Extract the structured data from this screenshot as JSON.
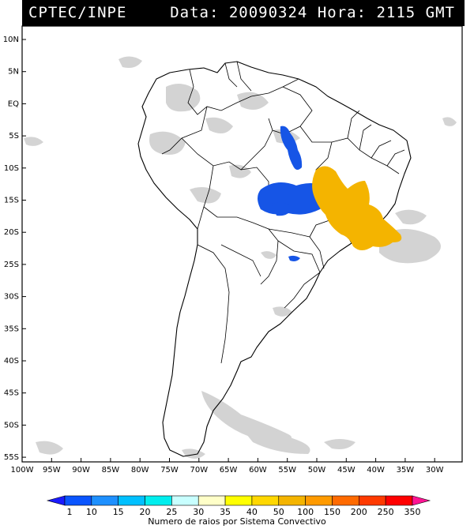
{
  "header": {
    "source": "CPTEC/INPE",
    "date_label": "Data:",
    "date_value": "20090324",
    "time_label": "Hora:",
    "time_value": "2115 GMT"
  },
  "map": {
    "lat_ticks": [
      "10N",
      "5N",
      "EQ",
      "5S",
      "10S",
      "15S",
      "20S",
      "25S",
      "30S",
      "35S",
      "40S",
      "45S",
      "50S",
      "55S"
    ],
    "lon_ticks": [
      "100W",
      "95W",
      "90W",
      "85W",
      "80W",
      "75W",
      "70W",
      "65W",
      "60W",
      "55W",
      "50W",
      "45W",
      "40W",
      "35W",
      "30W"
    ],
    "colors": {
      "ocean": "#ffffff",
      "land": "#ffffff",
      "border": "#000000",
      "cloud": "#c8c8c8",
      "low_count": "#1655e6",
      "high_count": "#f4b400"
    }
  },
  "colorbar": {
    "labels": [
      "1",
      "10",
      "15",
      "20",
      "25",
      "30",
      "35",
      "40",
      "50",
      "100",
      "150",
      "200",
      "250",
      "350"
    ],
    "colors": [
      "#1a1aff",
      "#0a55ff",
      "#1e90ff",
      "#00c0ff",
      "#00eeee",
      "#c8ffff",
      "#ffffc8",
      "#ffff00",
      "#ffd700",
      "#f4b400",
      "#ff9a00",
      "#ff6a00",
      "#ff3a00",
      "#ff0000",
      "#ff1493"
    ],
    "title": "Numero de raios por Sistema Convectivo"
  }
}
